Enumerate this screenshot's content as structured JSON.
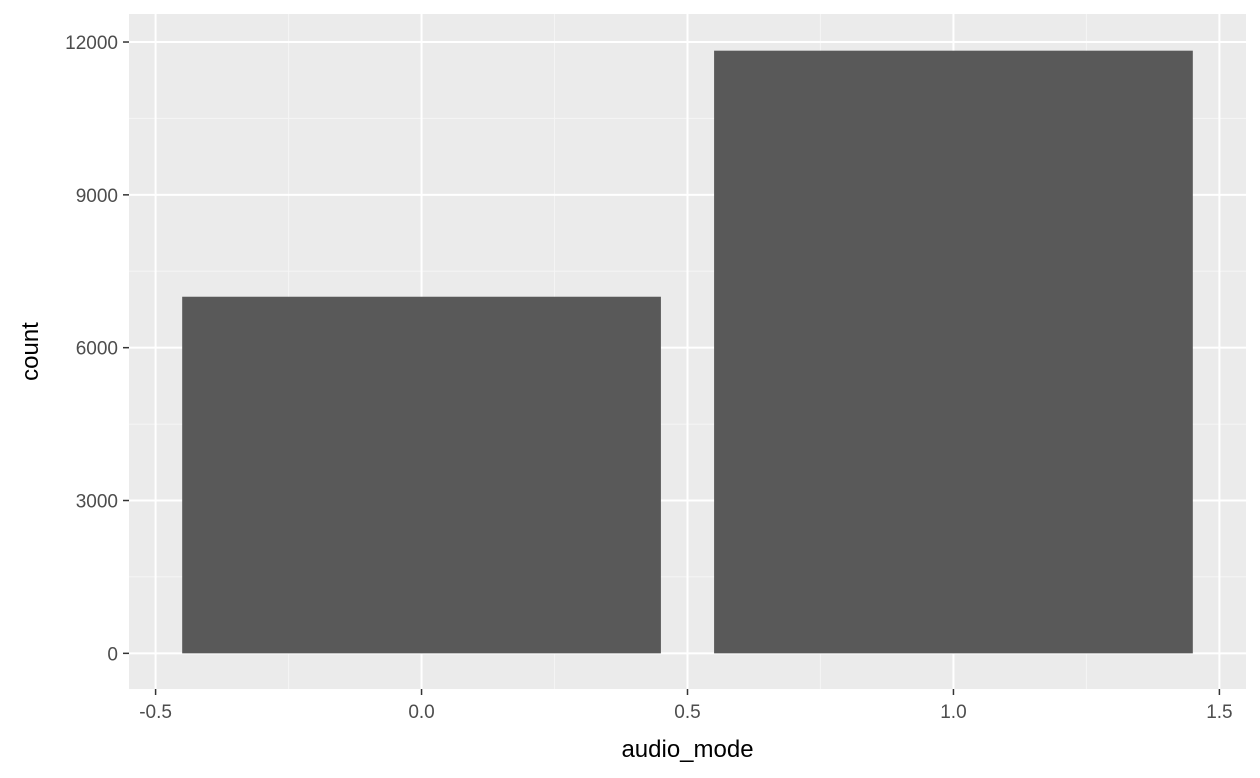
{
  "chart_data": {
    "type": "bar",
    "title": "",
    "xlabel": "audio_mode",
    "ylabel": "count",
    "x": [
      0,
      1
    ],
    "values": [
      7000,
      11830
    ],
    "bar_width": 0.9,
    "xlim": [
      -0.55,
      1.55
    ],
    "ylim": [
      -700,
      12550
    ],
    "x_ticks": [
      -0.5,
      0.0,
      0.5,
      1.0,
      1.5
    ],
    "x_tick_labels": [
      "-0.5",
      "0.0",
      "0.5",
      "1.0",
      "1.5"
    ],
    "y_ticks": [
      0,
      3000,
      6000,
      9000,
      12000
    ],
    "y_tick_labels": [
      "0",
      "3000",
      "6000",
      "9000",
      "12000"
    ],
    "grid": true,
    "legend": "none",
    "colors": {
      "panel_background": "#ebebeb",
      "grid_major": "#ffffff",
      "grid_minor": "#f5f5f5",
      "bar_fill": "#595959",
      "tick_text": "#4d4d4d",
      "axis_title_text": "#000000",
      "tick_mark": "#333333"
    }
  }
}
